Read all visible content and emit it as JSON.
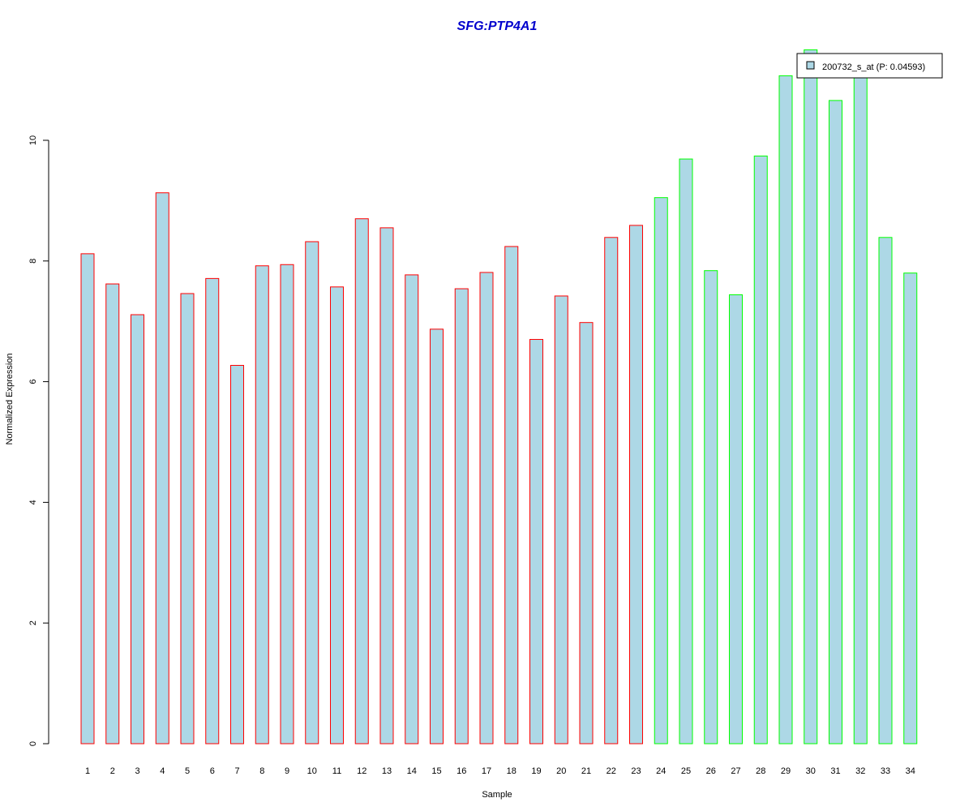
{
  "chart_data": {
    "type": "bar",
    "title": "SFG:PTP4A1",
    "xlabel": "Sample",
    "ylabel": "Normalized Expression",
    "ylim": [
      0,
      11.6
    ],
    "yticks": [
      "0",
      "2",
      "4",
      "6",
      "8",
      "10"
    ],
    "categories": [
      "1",
      "2",
      "3",
      "4",
      "5",
      "6",
      "7",
      "8",
      "9",
      "10",
      "11",
      "12",
      "13",
      "14",
      "15",
      "16",
      "17",
      "18",
      "19",
      "20",
      "21",
      "22",
      "23",
      "24",
      "25",
      "26",
      "27",
      "28",
      "29",
      "30",
      "31",
      "32",
      "33",
      "34"
    ],
    "values": [
      8.12,
      7.62,
      7.11,
      9.13,
      7.46,
      7.71,
      6.27,
      7.92,
      7.94,
      8.32,
      7.57,
      8.7,
      8.55,
      7.77,
      6.87,
      7.54,
      7.81,
      8.24,
      6.7,
      7.42,
      6.98,
      8.39,
      8.59,
      9.05,
      9.69,
      7.84,
      7.44,
      9.74,
      11.07,
      11.5,
      10.66,
      11.1,
      8.39,
      7.8
    ],
    "groups": [
      "red",
      "red",
      "red",
      "red",
      "red",
      "red",
      "red",
      "red",
      "red",
      "red",
      "red",
      "red",
      "red",
      "red",
      "red",
      "red",
      "red",
      "red",
      "red",
      "red",
      "red",
      "red",
      "red",
      "green",
      "green",
      "green",
      "green",
      "green",
      "green",
      "green",
      "green",
      "green",
      "green",
      "green"
    ],
    "series": [
      {
        "name": "200732_s_at (P: 0.04593)",
        "fill": "#add8e6"
      }
    ],
    "legend_position": "top-right",
    "grid": false
  },
  "colors": {
    "title": "#0000cd",
    "bar_fill": "#add8e6",
    "border_red": "#ff0000",
    "border_green": "#00ff00",
    "axis": "#000000"
  }
}
